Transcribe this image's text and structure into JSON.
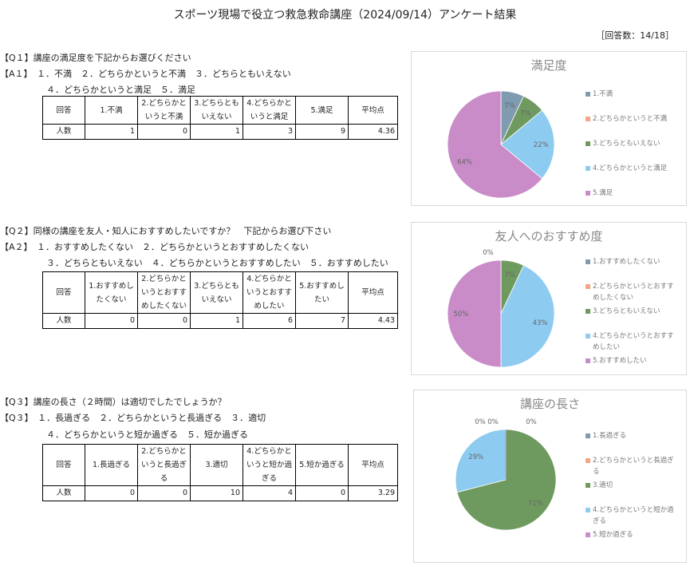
{
  "header": {
    "title": "スポーツ現場で役立つ救急救命講座（2024/09/14）アンケート結果",
    "response_count": "［回答数：14/18］"
  },
  "sections": [
    {
      "question": "【Q１】講座の満足度を下記からお選びください",
      "answer_lines": [
        "【A１】　１．不満　２．どちらかというと不満　３．どちらともいえない",
        "４．どちらかというと満足　５．満足"
      ],
      "table": {
        "header": [
          "回答",
          "1.不満",
          "2.どちらかというと不満",
          "3.どちらともいえない",
          "4.どちらかというと満足",
          "5.満足",
          "平均点"
        ],
        "row_label": "人数",
        "values": [
          1,
          0,
          1,
          3,
          9
        ],
        "average": 4.36
      },
      "chart_data": {
        "type": "pie",
        "title": "満足度",
        "categories": [
          "1.不満",
          "2.どちらかというと不満",
          "3.どちらともいえない",
          "4.どちらかというと満足",
          "5.満足"
        ],
        "values": [
          7,
          0,
          7,
          22,
          64
        ],
        "value_labels": [
          "7%",
          null,
          "7%",
          "22%",
          "64%"
        ],
        "colors": [
          "#7f9bb0",
          "#f4a582",
          "#6f9a5f",
          "#8ecbf0",
          "#c98cc8"
        ],
        "legend": "right"
      }
    },
    {
      "question": "【Q２】同様の講座を友人・知人におすすめしたいですか？　下記からお選び下さい",
      "answer_lines": [
        "【A２】　１．おすすめしたくない　２．どちらかというとおすすめしたくない",
        "３．どちらともいえない　４．どちらかというとおすすめしたい　５．おすすめしたい"
      ],
      "table": {
        "header": [
          "回答",
          "1.おすすめしたくない",
          "2.どちらかというとおすすめしたくない",
          "3.どちらともいえない",
          "4.どちらかというとおすすめしたい",
          "5.おすすめしたい",
          "平均点"
        ],
        "row_label": "人数",
        "values": [
          0,
          0,
          1,
          6,
          7
        ],
        "average": 4.43
      },
      "chart_data": {
        "type": "pie",
        "title": "友人へのおすすめ度",
        "categories": [
          "1.おすすめしたくない",
          "2.どちらかというとおすすめしたくない",
          "3.どちらともいえない",
          "4.どちらかというとおすすめしたい",
          "5.おすすめしたい"
        ],
        "values": [
          0,
          0,
          7,
          43,
          50
        ],
        "value_labels": [
          null,
          "0%",
          "7%",
          "43%",
          "50%"
        ],
        "colors": [
          "#7f9bb0",
          "#f4a582",
          "#6f9a5f",
          "#8ecbf0",
          "#c98cc8"
        ],
        "legend": "right"
      }
    },
    {
      "question": "【Q３】講座の長さ（２時間）は適切でしたでしょうか？",
      "answer_lines": [
        "【Q３】　１．長過ぎる　２．どちらかというと長過ぎる　３．適切",
        "４．どちらかというと短か過ぎる　５．短か過ぎる"
      ],
      "table": {
        "header": [
          "回答",
          "1.長過ぎる",
          "2.どちらかというと長過ぎる",
          "3.適切",
          "4.どちらかというと短か過ぎる",
          "5.短か過ぎる",
          "平均点"
        ],
        "row_label": "人数",
        "values": [
          0,
          0,
          10,
          4,
          0
        ],
        "average": 3.29
      },
      "chart_data": {
        "type": "pie",
        "title": "講座の長さ",
        "categories": [
          "1.長過ぎる",
          "2.どちらかというと長過ぎる",
          "3.適切",
          "4.どちらかというと短か過ぎる",
          "5.短か過ぎる"
        ],
        "values": [
          0,
          0,
          71,
          29,
          0
        ],
        "value_labels": [
          "0%",
          "0%",
          "71%",
          "29%",
          "0%"
        ],
        "colors": [
          "#7f9bb0",
          "#f4a582",
          "#6f9a5f",
          "#8ecbf0",
          "#c98cc8"
        ],
        "legend": "right"
      }
    }
  ]
}
